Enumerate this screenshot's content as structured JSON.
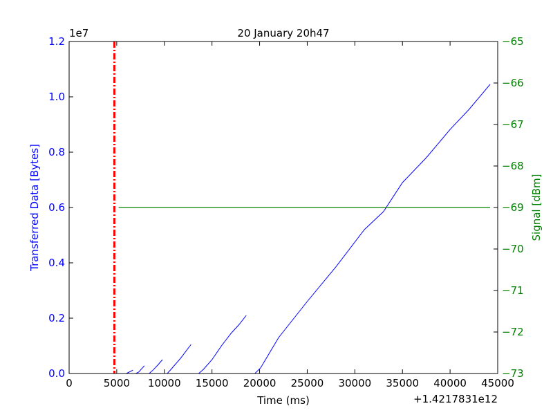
{
  "chart_data": {
    "type": "line",
    "title": "20 January 20h47",
    "xlabel": "Time (ms)",
    "x_offset_label": "+1.4217831e12",
    "xlim": [
      0,
      45000
    ],
    "xticks": [
      0,
      5000,
      10000,
      15000,
      20000,
      25000,
      30000,
      35000,
      40000,
      45000
    ],
    "xtick_labels": [
      "0",
      "5000",
      "10000",
      "15000",
      "20000",
      "25000",
      "30000",
      "35000",
      "40000",
      "45000"
    ],
    "y_left": {
      "label": "Transferred Data [Bytes]",
      "multiplier_label": "1e7",
      "lim": [
        0,
        1.2
      ],
      "ticks": [
        0.0,
        0.2,
        0.4,
        0.6,
        0.8,
        1.0,
        1.2
      ],
      "tick_labels": [
        "0.0",
        "0.2",
        "0.4",
        "0.6",
        "0.8",
        "1.0",
        "1.2"
      ],
      "color": "#0000ff"
    },
    "y_right": {
      "label": "Signal [dBm]",
      "lim": [
        -73,
        -65
      ],
      "ticks": [
        -73,
        -72,
        -71,
        -70,
        -69,
        -68,
        -67,
        -66,
        -65
      ],
      "tick_labels": [
        "−73",
        "−72",
        "−71",
        "−70",
        "−69",
        "−68",
        "−67",
        "−66",
        "−65"
      ],
      "color": "#008000"
    },
    "series": [
      {
        "axis": "left",
        "color": "#0000ff",
        "segments": [
          [
            [
              6000,
              0
            ],
            [
              6700,
              0.012
            ]
          ],
          [
            [
              7000,
              0
            ],
            [
              7300,
              0.005
            ],
            [
              7900,
              0.028
            ]
          ],
          [
            [
              8400,
              0
            ],
            [
              8800,
              0.012
            ],
            [
              9300,
              0.03
            ],
            [
              9800,
              0.05
            ]
          ],
          [
            [
              10300,
              0
            ],
            [
              10700,
              0.015
            ],
            [
              11700,
              0.055
            ],
            [
              12800,
              0.105
            ]
          ],
          [
            [
              13600,
              0
            ],
            [
              14100,
              0.015
            ],
            [
              15000,
              0.05
            ],
            [
              16000,
              0.1
            ],
            [
              17000,
              0.145
            ],
            [
              17800,
              0.175
            ],
            [
              18600,
              0.21
            ]
          ],
          [
            [
              19500,
              0
            ],
            [
              20100,
              0.02
            ],
            [
              22000,
              0.13
            ],
            [
              25000,
              0.26
            ],
            [
              28000,
              0.385
            ],
            [
              31000,
              0.52
            ],
            [
              33000,
              0.585
            ],
            [
              35000,
              0.69
            ],
            [
              37500,
              0.78
            ],
            [
              40000,
              0.882
            ],
            [
              42000,
              0.955
            ],
            [
              44200,
              1.045
            ]
          ]
        ]
      },
      {
        "axis": "right",
        "color": "#008000",
        "segments": [
          [
            [
              5200,
              -69
            ],
            [
              44200,
              -69
            ]
          ]
        ]
      }
    ],
    "annotations": [
      {
        "type": "vline",
        "x": 4750,
        "color": "#ff0000",
        "style": "dash-dot"
      }
    ],
    "grid": false
  }
}
